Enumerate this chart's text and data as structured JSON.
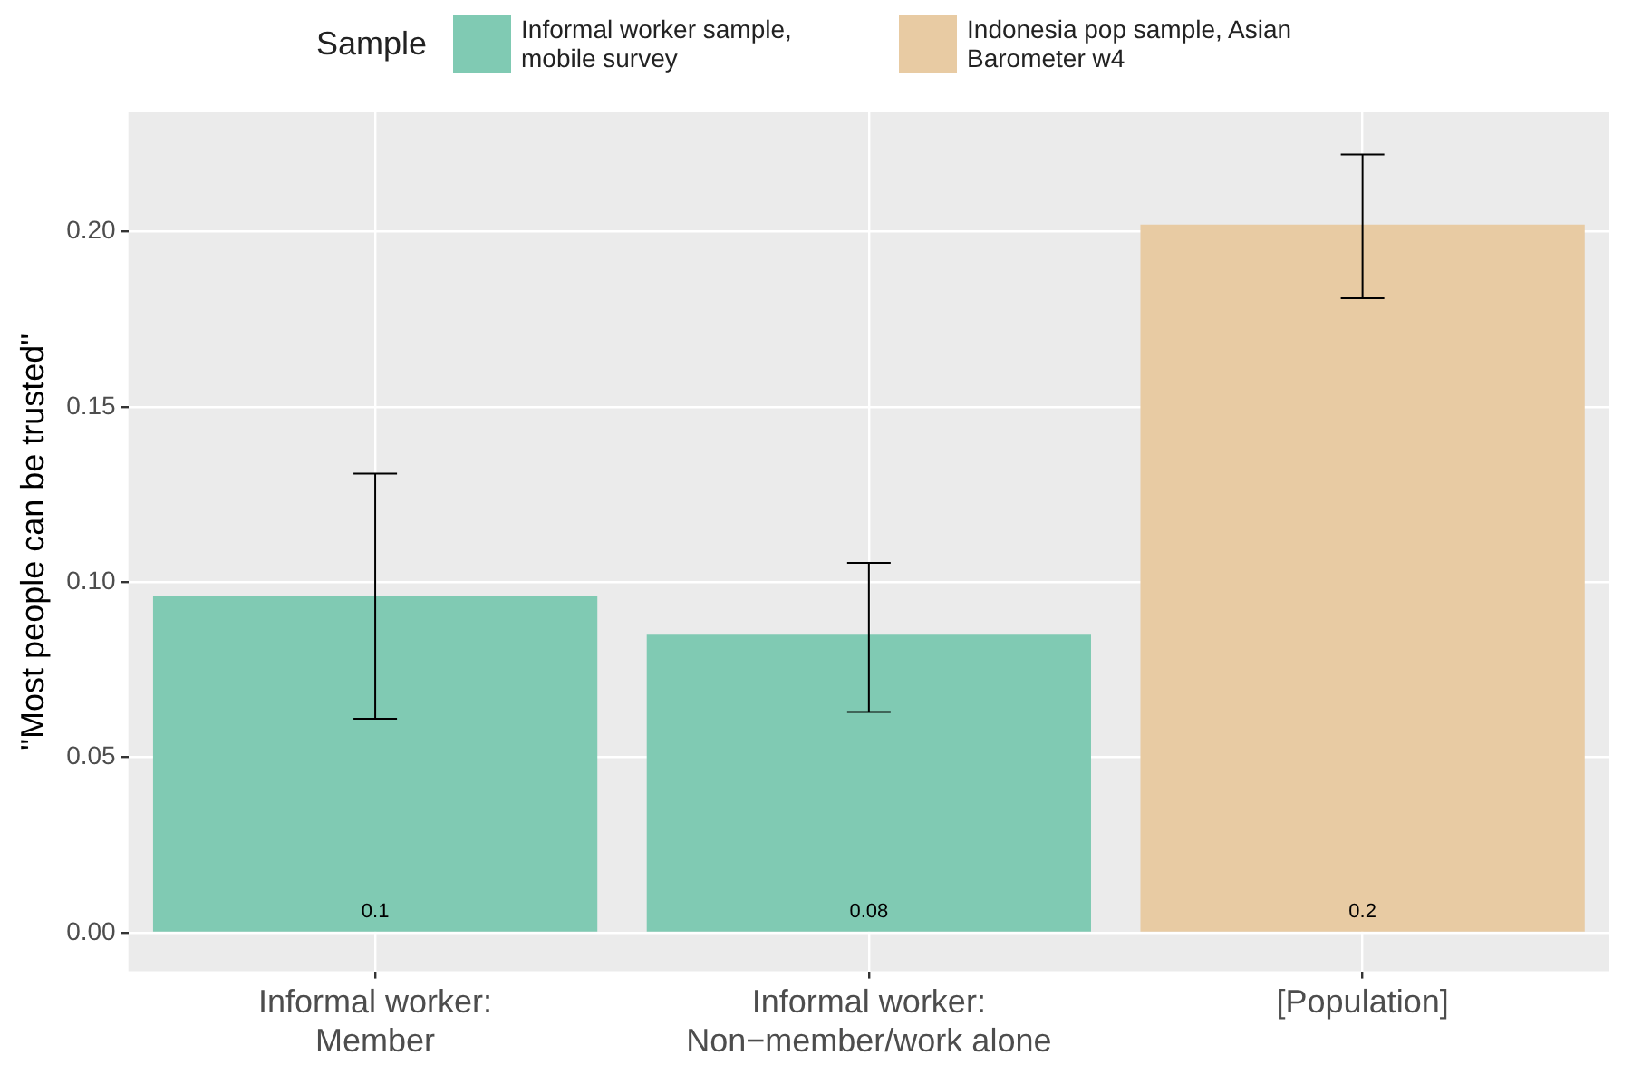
{
  "chart_data": {
    "type": "bar",
    "ylabel": "\"Most people can be trusted\"",
    "legend_title": "Sample",
    "legend": "top",
    "categories": [
      "Informal worker:\nMember",
      "Informal worker:\nNon−member/work alone",
      "[Population]"
    ],
    "series": [
      {
        "name": "Informal worker sample, mobile survey",
        "color": "#80cab3",
        "values": [
          0.096,
          0.085,
          null
        ],
        "errors": [
          [
            0.061,
            0.131
          ],
          [
            0.063,
            0.1055
          ],
          null
        ],
        "value_labels": [
          "0.1",
          "0.08",
          null
        ]
      },
      {
        "name": "Indonesia pop sample, Asian Barometer w4",
        "color": "#e8cba3",
        "values": [
          null,
          null,
          0.202
        ],
        "errors": [
          null,
          null,
          [
            0.181,
            0.222
          ]
        ],
        "value_labels": [
          null,
          null,
          "0.2"
        ]
      }
    ],
    "ylim": [
      -0.011,
      0.234
    ],
    "yticks": [
      {
        "value": 0,
        "label": "0.00"
      },
      {
        "value": 0.05,
        "label": "0.05"
      },
      {
        "value": 0.1,
        "label": "0.10"
      },
      {
        "value": 0.15,
        "label": "0.15"
      },
      {
        "value": 0.2,
        "label": "0.20"
      }
    ],
    "grid": true
  }
}
